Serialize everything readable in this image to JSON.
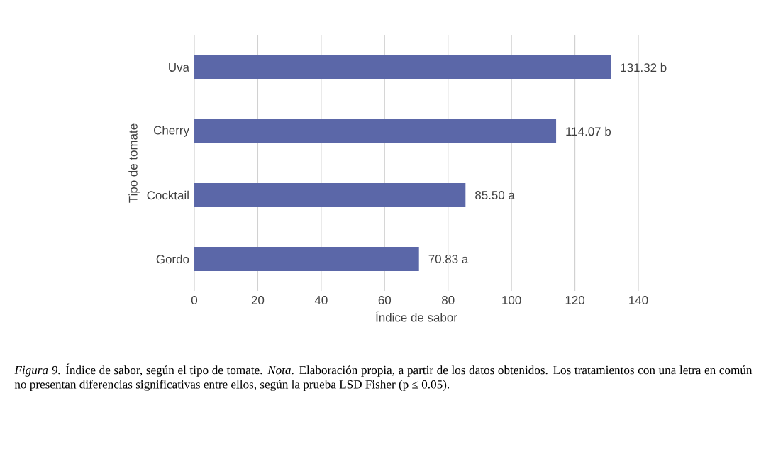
{
  "chart_data": {
    "type": "bar",
    "orientation": "horizontal",
    "categories": [
      "Uva",
      "Cherry",
      "Cocktail",
      "Gordo"
    ],
    "values": [
      131.32,
      114.07,
      85.5,
      70.83
    ],
    "value_labels": [
      "131.32 b",
      "114.07 b",
      "85.50 a",
      "70.83 a"
    ],
    "color": "#5b67a8",
    "xlim": [
      0,
      140
    ],
    "xticks": [
      0,
      20,
      40,
      60,
      80,
      100,
      120,
      140
    ],
    "grid": "x",
    "xlabel": "Índice de sabor",
    "ylabel": "Tipo de tomate",
    "annotations": [
      "*Figura 9*. Índice de sabor, según el tipo de tomate. *Nota*. Elaboración propia, a partir de los datos obtenidos. Los tratamientos con una letra en común no presentan diferencias significativas entre ellos, según la prueba LSD Fisher (p ≤ 0.05)."
    ]
  }
}
